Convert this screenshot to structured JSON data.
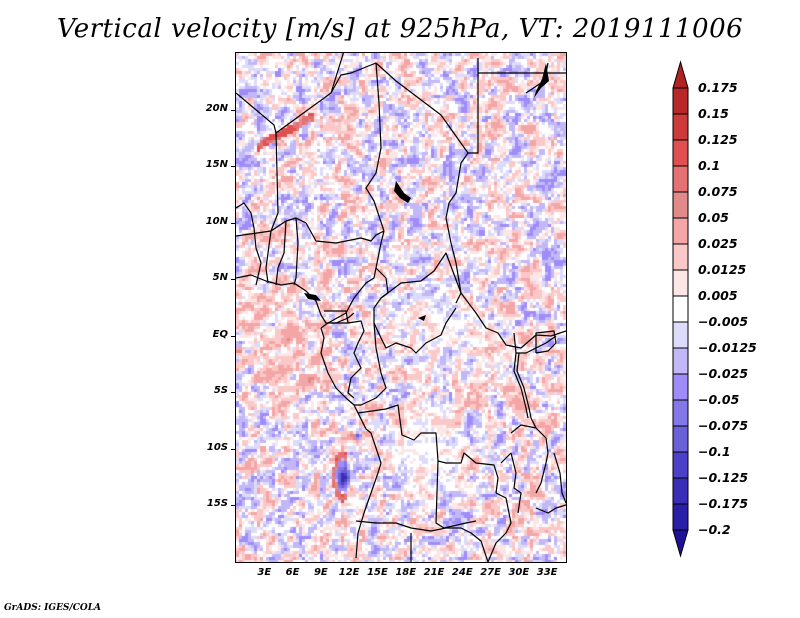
{
  "title": "Vertical velocity [m/s] at 925hPa, VT: 2019111006",
  "credit": "GrADS: IGES/COLA",
  "chart_data": {
    "type": "heatmap",
    "title": "Vertical velocity [m/s] at 925hPa, VT: 2019111006",
    "variable": "Vertical velocity",
    "units": "m/s",
    "level": "925hPa",
    "valid_time": "2019111006",
    "xlabel": "",
    "ylabel": "",
    "xlim_deg_east": [
      0,
      35
    ],
    "ylim_deg_north": [
      -20,
      25
    ],
    "x_ticks": [
      "3E",
      "6E",
      "9E",
      "12E",
      "15E",
      "18E",
      "21E",
      "24E",
      "27E",
      "30E",
      "33E"
    ],
    "x_tick_values": [
      3,
      6,
      9,
      12,
      15,
      18,
      21,
      24,
      27,
      30,
      33
    ],
    "y_ticks": [
      "20N",
      "15N",
      "10N",
      "5N",
      "EQ",
      "5S",
      "10S",
      "15S"
    ],
    "y_tick_values": [
      20,
      15,
      10,
      5,
      0,
      -5,
      -10,
      -15
    ],
    "legend_placement": "right",
    "colorbar": {
      "labels": [
        "0.175",
        "0.15",
        "0.125",
        "0.1",
        "0.075",
        "0.05",
        "0.025",
        "0.0125",
        "0.005",
        "-0.005",
        "-0.0125",
        "-0.025",
        "-0.05",
        "-0.075",
        "-0.1",
        "-0.125",
        "-0.175",
        "-0.2"
      ],
      "levels": [
        0.175,
        0.15,
        0.125,
        0.1,
        0.075,
        0.05,
        0.025,
        0.0125,
        0.005,
        -0.005,
        -0.0125,
        -0.025,
        -0.05,
        -0.075,
        -0.1,
        -0.125,
        -0.175,
        -0.2
      ],
      "colors": [
        "#b22222",
        "#b82828",
        "#cc3a3a",
        "#e05050",
        "#e57272",
        "#e08a8a",
        "#f4a6a6",
        "#fbc8c8",
        "#fde6e6",
        "#ffffff",
        "#dcdcfa",
        "#c2b8f8",
        "#a08cf8",
        "#8478e8",
        "#6c60d8",
        "#4c40c8",
        "#3a2eb8",
        "#2a20a8",
        "#20109a"
      ],
      "top_arrow_color": "#b22222",
      "bottom_arrow_color": "#20109a"
    },
    "features": [
      "strong dipole (up/down) off Angola coast near 12E, 10-13S",
      "mostly neutral (white) over Congo basin and Angola interior",
      "mixed weak ascent/descent over Sahel and Sahara",
      "red streaks over northern Niger/Mali border ~17N"
    ]
  }
}
